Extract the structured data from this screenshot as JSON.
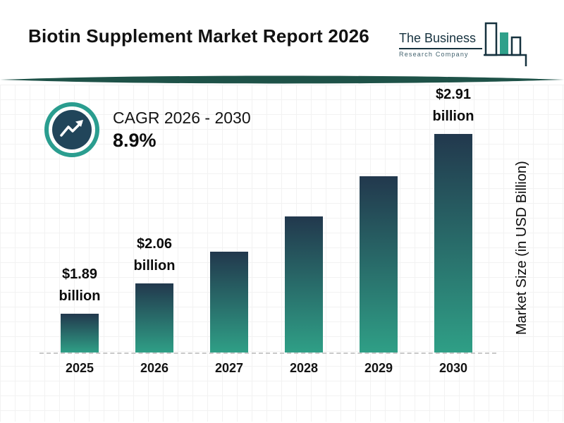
{
  "header": {
    "title": "Biotin Supplement Market Report 2026",
    "logo": {
      "line1": "The Business",
      "line2": "Research Company"
    }
  },
  "cagr": {
    "label": "CAGR 2026 - 2030",
    "value": "8.9%"
  },
  "colors": {
    "brand_navy": "#16323f",
    "brand_teal": "#2a9d8f",
    "divider_green": "#1e5248",
    "bar_top": "#22384d",
    "bar_bottom": "#2f9f86"
  },
  "chart_data": {
    "type": "bar",
    "title": "Biotin Supplement Market Report 2026",
    "categories": [
      "2025",
      "2026",
      "2027",
      "2028",
      "2029",
      "2030"
    ],
    "values": [
      1.89,
      2.06,
      2.24,
      2.44,
      2.67,
      2.91
    ],
    "unit": "USD Billion",
    "xlabel": "",
    "ylabel": "Market Size (in USD Billion)",
    "annotations": {
      "2025": [
        "$1.89",
        "billion"
      ],
      "2026": [
        "$2.06",
        "billion"
      ],
      "2030": [
        "$2.91",
        "billion"
      ]
    },
    "cagr_label": "CAGR 2026 - 2030",
    "cagr_value": "8.9%",
    "legend": "none",
    "grid": "faint",
    "baseline_style": "dashed",
    "bar_gradient": [
      "#22384d",
      "#2f9f86"
    ]
  }
}
